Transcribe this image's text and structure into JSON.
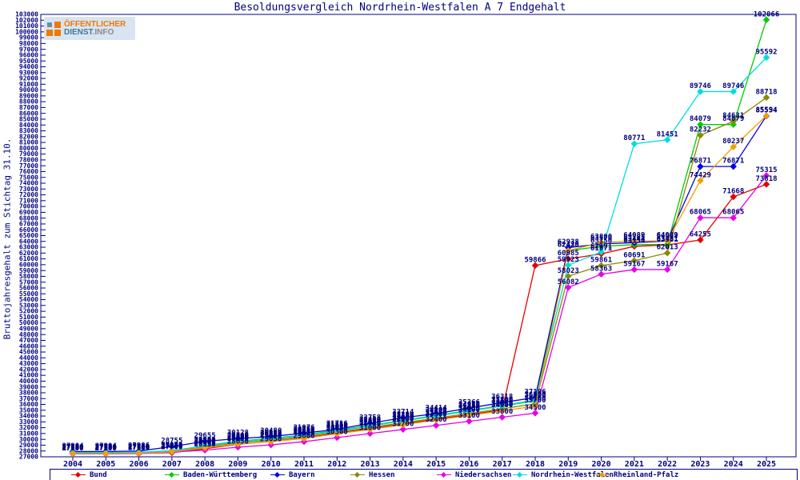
{
  "header": {
    "title": "Besoldungsvergleich Nordrhein-Westfalen A 7 Endgehalt",
    "logo": {
      "line1": "ÖFFENTLICHER",
      "line2_a": "DIENST",
      "line2_b": ".INFO"
    }
  },
  "chart_data": {
    "type": "line",
    "title": "Besoldungsvergleich Nordrhein-Westfalen A 7 Endgehalt",
    "ylabel": "Bruttojahresgehalt zum Stichtag 31.10.",
    "xlabel": "",
    "grid": false,
    "legend_position": "bottom",
    "axis_color": "#000080",
    "label_color": "#000080",
    "ylim": [
      27000,
      103000
    ],
    "y_axis": {
      "min": 27000,
      "max": 103000,
      "tick_step": 1000
    },
    "x_years": [
      2004,
      2005,
      2006,
      2007,
      2008,
      2009,
      2010,
      2011,
      2012,
      2013,
      2014,
      2015,
      2016,
      2017,
      2018,
      2019,
      2020,
      2021,
      2022,
      2023,
      2024,
      2025
    ],
    "series": [
      {
        "name": "Bund",
        "color": "#e80000",
        "values": [
          27580,
          27580,
          27580,
          27700,
          28400,
          29150,
          29650,
          30250,
          31050,
          31850,
          32650,
          33450,
          34250,
          35050,
          59866,
          60985,
          61871,
          63154,
          63381,
          64255,
          71668,
          73818
        ]
      },
      {
        "name": "Baden-Württemberg",
        "color": "#00cc00",
        "values": [
          27700,
          27700,
          27760,
          28050,
          28900,
          29700,
          30150,
          30750,
          31550,
          32400,
          33250,
          34100,
          34950,
          35800,
          36700,
          62430,
          63150,
          63444,
          63481,
          84079,
          84079,
          102066
        ]
      },
      {
        "name": "Bayern",
        "color": "#0000e8",
        "values": [
          27904,
          27904,
          27986,
          28755,
          29655,
          30128,
          30480,
          31076,
          31716,
          32758,
          33714,
          34414,
          35366,
          36318,
          37186,
          62938,
          63570,
          63785,
          64072,
          76871,
          76871,
          85554
        ]
      },
      {
        "name": "Hessen",
        "color": "#8a8a00",
        "values": [
          27650,
          27650,
          27700,
          27950,
          28700,
          29400,
          29850,
          30450,
          31250,
          32050,
          32850,
          33650,
          34450,
          35250,
          36100,
          58023,
          59861,
          60691,
          62013,
          82232,
          84631,
          88718
        ]
      },
      {
        "name": "Niedersachsen",
        "color": "#e800e8",
        "values": [
          27500,
          27500,
          27540,
          27800,
          28150,
          28650,
          29050,
          29600,
          30300,
          31000,
          31700,
          32400,
          33100,
          33800,
          34500,
          56082,
          58363,
          59167,
          59167,
          68065,
          68065,
          75315
        ]
      },
      {
        "name": "Nordrhein-Westfalen",
        "color": "#00dcdc",
        "values": [
          27720,
          27720,
          27780,
          28060,
          28850,
          29600,
          30050,
          30650,
          31450,
          32300,
          33150,
          34000,
          34850,
          35700,
          36600,
          59923,
          62191,
          80771,
          81451,
          89746,
          89746,
          95592
        ]
      },
      {
        "name": "Rheinland-Pfalz",
        "color": "#f0a000",
        "values": [
          27550,
          27550,
          27600,
          27870,
          28550,
          29200,
          29600,
          30150,
          30950,
          31700,
          32500,
          33300,
          34100,
          34900,
          35700,
          62428,
          63800,
          64089,
          64089,
          74429,
          80237,
          85594
        ]
      }
    ]
  }
}
